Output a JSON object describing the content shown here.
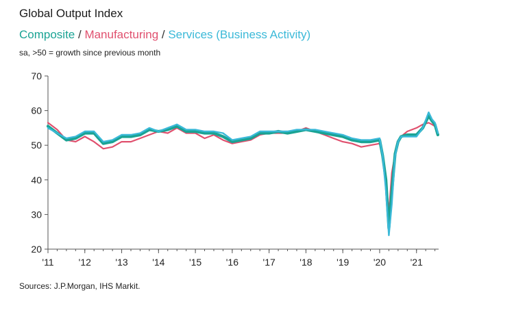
{
  "title": "Global Output Index",
  "subtitle": {
    "composite": "Composite",
    "sep1": " / ",
    "manufacturing": "Manufacturing",
    "sep2": " / ",
    "services": "Services (Business Activity)"
  },
  "note": "sa, >50 = growth since previous month",
  "source": "Sources: J.P.Morgan, IHS Markit.",
  "colors": {
    "composite": "#1aa394",
    "manufacturing": "#e0506e",
    "services": "#3bb9d8"
  },
  "chart_data": {
    "type": "line",
    "ylim": [
      20,
      70
    ],
    "yticks": [
      "20",
      "30",
      "40",
      "50",
      "60",
      "70"
    ],
    "xlim": [
      2011,
      2021.6
    ],
    "xticks": [
      {
        "label": "'11",
        "year": 2011
      },
      {
        "label": "'12",
        "year": 2012
      },
      {
        "label": "'13",
        "year": 2013
      },
      {
        "label": "'14",
        "year": 2014
      },
      {
        "label": "'15",
        "year": 2015
      },
      {
        "label": "'16",
        "year": 2016
      },
      {
        "label": "'17",
        "year": 2017
      },
      {
        "label": "'18",
        "year": 2018
      },
      {
        "label": "'19",
        "year": 2019
      },
      {
        "label": "'20",
        "year": 2020
      },
      {
        "label": "'21",
        "year": 2021
      }
    ],
    "x": [
      2011.0,
      2011.25,
      2011.5,
      2011.75,
      2012.0,
      2012.25,
      2012.5,
      2012.75,
      2013.0,
      2013.25,
      2013.5,
      2013.75,
      2014.0,
      2014.25,
      2014.5,
      2014.75,
      2015.0,
      2015.25,
      2015.5,
      2015.75,
      2016.0,
      2016.25,
      2016.5,
      2016.75,
      2017.0,
      2017.25,
      2017.5,
      2017.75,
      2018.0,
      2018.25,
      2018.5,
      2018.75,
      2019.0,
      2019.25,
      2019.5,
      2019.75,
      2020.0,
      2020.08,
      2020.17,
      2020.25,
      2020.33,
      2020.42,
      2020.5,
      2020.58,
      2020.75,
      2021.0,
      2021.17,
      2021.33,
      2021.42,
      2021.5,
      2021.58
    ],
    "series": [
      {
        "name": "Manufacturing",
        "key": "manufacturing",
        "values": [
          56.5,
          54.5,
          51.5,
          51.0,
          52.5,
          51.0,
          49.0,
          49.5,
          51.0,
          51.0,
          52.0,
          53.0,
          54.0,
          53.5,
          55.0,
          53.5,
          53.5,
          52.0,
          53.0,
          51.5,
          50.5,
          51.0,
          51.5,
          53.0,
          53.5,
          53.5,
          53.5,
          54.0,
          55.0,
          54.0,
          53.0,
          52.0,
          51.0,
          50.5,
          49.5,
          50.0,
          50.5,
          47.0,
          40.0,
          30.5,
          42.0,
          47.5,
          51.0,
          52.5,
          54.0,
          55.0,
          56.0,
          56.5,
          56.0,
          55.5,
          53.0
        ]
      },
      {
        "name": "Composite",
        "key": "composite",
        "values": [
          55.5,
          53.5,
          51.5,
          52.0,
          53.5,
          53.5,
          50.5,
          51.0,
          52.5,
          52.5,
          53.0,
          54.5,
          54.0,
          54.5,
          55.5,
          54.0,
          54.0,
          53.5,
          53.5,
          52.5,
          51.0,
          51.5,
          52.0,
          53.5,
          53.5,
          54.0,
          53.5,
          54.0,
          54.5,
          54.0,
          53.5,
          53.0,
          52.5,
          51.5,
          51.0,
          51.0,
          51.5,
          47.0,
          40.0,
          26.0,
          36.5,
          47.5,
          51.0,
          52.5,
          53.0,
          53.0,
          55.0,
          58.5,
          57.0,
          56.0,
          53.0
        ]
      },
      {
        "name": "Services (Business Activity)",
        "key": "services",
        "values": [
          55.0,
          53.5,
          52.0,
          52.5,
          54.0,
          54.0,
          51.0,
          51.5,
          53.0,
          53.0,
          53.5,
          55.0,
          54.0,
          55.0,
          56.0,
          54.5,
          54.5,
          54.0,
          54.0,
          53.5,
          51.5,
          52.0,
          52.5,
          54.0,
          54.0,
          54.0,
          54.0,
          54.5,
          54.5,
          54.5,
          54.0,
          53.5,
          53.0,
          52.0,
          51.5,
          51.5,
          52.0,
          47.0,
          37.0,
          24.0,
          33.0,
          47.0,
          51.0,
          52.5,
          52.5,
          52.5,
          55.0,
          59.5,
          57.5,
          56.5,
          53.5
        ]
      }
    ],
    "grid": false,
    "legend": "none"
  }
}
